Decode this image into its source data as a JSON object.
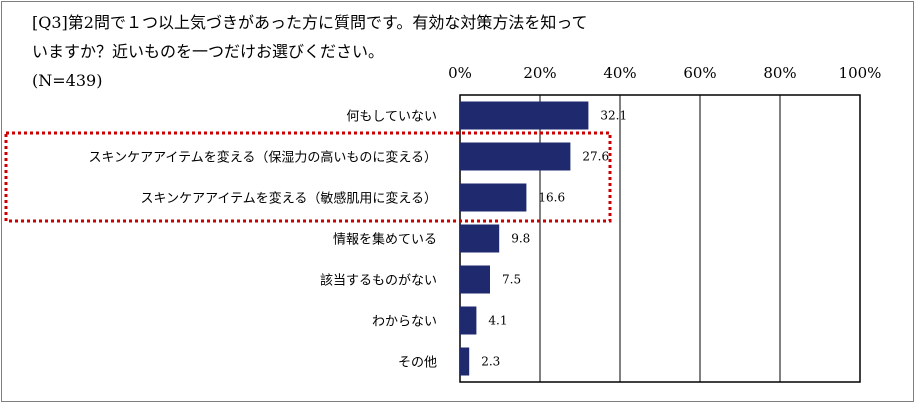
{
  "question": {
    "line1": "[Q3]第2問で１つ以上気づきがあった方に質問です。有効な対策方法を知って",
    "line2": "いますか？近いものを一つだけお選びください。",
    "line3": "(N=439)"
  },
  "chart_data": {
    "type": "bar",
    "orientation": "horizontal",
    "title": "[Q3]第2問で１つ以上気づきがあった方に質問です。有効な対策方法を知っていますか？近いものを一つだけお選びください。 (N=439)",
    "categories": [
      "何もしていない",
      "スキンケアアイテムを変える（保湿力の高いものに変える）",
      "スキンケアアイテムを変える（敏感肌用に変える）",
      "情報を集めている",
      "該当するものがない",
      "わからない",
      "その他"
    ],
    "values": [
      32.1,
      27.6,
      16.6,
      9.8,
      7.5,
      4.1,
      2.3
    ],
    "value_labels": [
      "32.1",
      "27.6",
      "16.6",
      "9.8",
      "7.5",
      "4.1",
      "2.3"
    ],
    "xlim": [
      0,
      100
    ],
    "xticks": [
      0,
      20,
      40,
      60,
      80,
      100
    ],
    "xtick_labels": [
      "0%",
      "20%",
      "40%",
      "60%",
      "80%",
      "100%"
    ],
    "xaxis_position": "top",
    "grid": true,
    "bar_color": "#1f2a6e",
    "highlight": {
      "categories": [
        1,
        2
      ],
      "style": "dashed-box",
      "color": "#cc0000"
    }
  }
}
